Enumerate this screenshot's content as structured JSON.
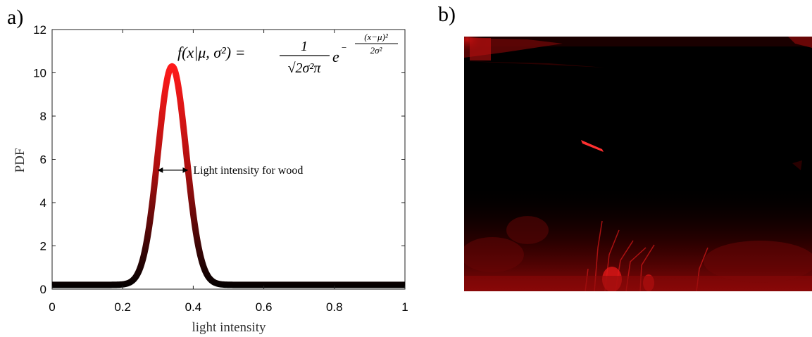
{
  "panels": {
    "a_label": "a)",
    "b_label": "b)"
  },
  "chart_data": {
    "type": "line",
    "xlabel": "light intensity",
    "ylabel": "PDF",
    "xlim": [
      0,
      1
    ],
    "ylim": [
      0,
      12
    ],
    "xticks": [
      0,
      0.2,
      0.4,
      0.6,
      0.8,
      1
    ],
    "xtick_labels": [
      "0",
      "0.2",
      "0.4",
      "0.6",
      "0.8",
      "1"
    ],
    "yticks": [
      0,
      2,
      4,
      6,
      8,
      10,
      12
    ],
    "ytick_labels": [
      "0",
      "2",
      "4",
      "6",
      "8",
      "10",
      "12"
    ],
    "grid": false,
    "series": [
      {
        "distribution": "gaussian",
        "mu": 0.34,
        "sigma": 0.04,
        "baseline": 0.2,
        "peak": 10.3,
        "color_high": "#ff1a1a",
        "color_low": "#000000"
      }
    ],
    "formula": {
      "lhs": "f(x|μ, σ²) =",
      "frac_num": "1",
      "frac_den": "√2σ²π",
      "exp_base": "e",
      "exp_sign": "−",
      "exp_num": "(x−μ)²",
      "exp_den": "2σ²"
    },
    "annotation": {
      "text": "Light intensity for wood",
      "arrow_from": 0.3,
      "arrow_to": 0.38,
      "arrow_y": 5.5
    }
  },
  "image": {
    "description_colors": {
      "background": "#000000",
      "highlight": "#ff1010"
    }
  }
}
